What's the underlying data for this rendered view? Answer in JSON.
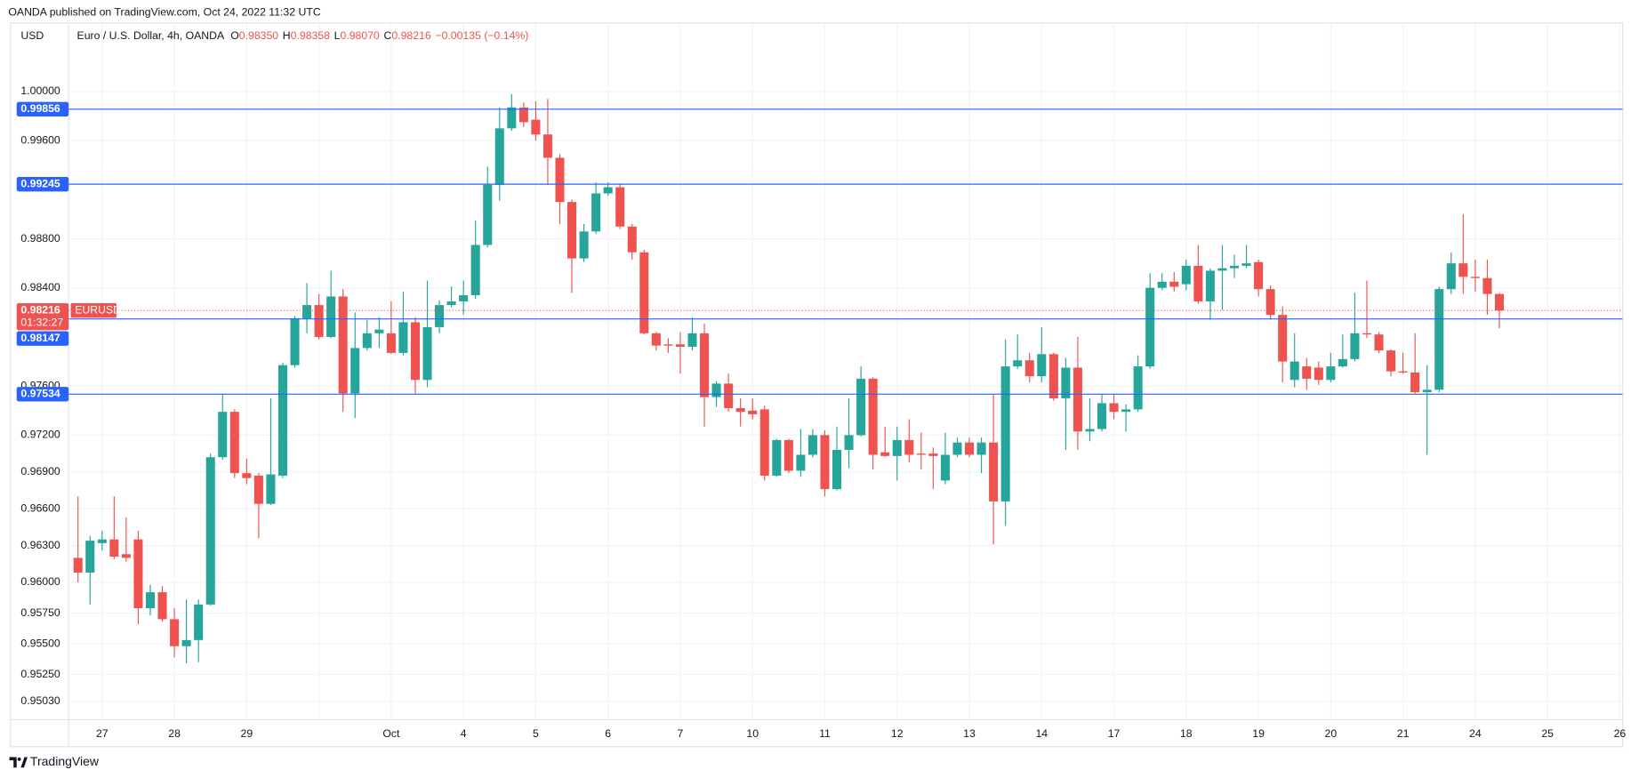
{
  "attribution": "OANDA published on TradingView.com, Oct 24, 2022 11:32 UTC",
  "brand": "TradingView",
  "chart_data": {
    "type": "candlestick",
    "title": "Euro / U.S. Dollar, 4h, OANDA",
    "header_values": [
      {
        "label": "O",
        "text": "0.98350"
      },
      {
        "label": "H",
        "text": "0.98358"
      },
      {
        "label": "L",
        "text": "0.98070"
      },
      {
        "label": "C",
        "text": "0.98216"
      }
    ],
    "change": "−0.00135 (−0.14%)",
    "y_axis_label": "USD",
    "day_labels": [
      "27",
      "28",
      "29",
      null,
      "Oct",
      "4",
      "5",
      "6",
      "7",
      "10",
      "11",
      "12",
      "13",
      "14",
      "17",
      "18",
      "19",
      "20",
      "21",
      "24",
      "25",
      "26"
    ],
    "open": [
      0.962,
      0.9608,
      0.9632,
      0.9635,
      0.9623,
      0.9635,
      0.9579,
      0.9592,
      0.957,
      0.9548,
      0.9553,
      0.9582,
      0.9702,
      0.9739,
      0.9689,
      0.9687,
      0.9664,
      0.9687,
      0.9777,
      0.9815,
      0.9826,
      0.98,
      0.9833,
      0.9754,
      0.9791,
      0.9803,
      0.9803,
      0.9787,
      0.9812,
      0.9765,
      0.9808,
      0.9826,
      0.9829,
      0.9834,
      0.9875,
      0.9924,
      0.997,
      0.9987,
      0.9977,
      0.9965,
      0.9946,
      0.991,
      0.9864,
      0.9886,
      0.9917,
      0.9922,
      0.989,
      0.9869,
      0.9803,
      0.9794,
      0.9794,
      0.9792,
      0.9803,
      0.9751,
      0.9762,
      0.9742,
      0.974,
      0.9741,
      0.9687,
      0.9716,
      0.9691,
      0.9704,
      0.972,
      0.9676,
      0.9708,
      0.972,
      0.9766,
      0.9706,
      0.9703,
      0.9716,
      0.9705,
      0.9705,
      0.9683,
      0.9704,
      0.9714,
      0.9704,
      0.9714,
      0.9666,
      0.9776,
      0.9781,
      0.9768,
      0.9786,
      0.975,
      0.9775,
      0.9723,
      0.9725,
      0.9746,
      0.9739,
      0.9741,
      0.9776,
      0.984,
      0.9845,
      0.9843,
      0.9858,
      0.9829,
      0.9854,
      0.9856,
      0.9858,
      0.9861,
      0.9839,
      0.9818,
      0.9765,
      0.9776,
      0.9775,
      0.9765,
      0.9776,
      0.9782,
      0.9803,
      0.9802,
      0.9789,
      0.9772,
      0.9771,
      0.9755,
      0.9757,
      0.9839,
      0.986,
      0.9849,
      0.9848,
      0.9835
    ],
    "high": [
      0.967,
      0.9638,
      0.9642,
      0.967,
      0.9653,
      0.9642,
      0.9598,
      0.9597,
      0.9579,
      0.9586,
      0.9586,
      0.9705,
      0.9753,
      0.9741,
      0.9701,
      0.9689,
      0.975,
      0.9779,
      0.9817,
      0.9844,
      0.9835,
      0.9854,
      0.9839,
      0.982,
      0.9814,
      0.9816,
      0.9829,
      0.9837,
      0.9816,
      0.9846,
      0.983,
      0.9841,
      0.9846,
      0.9895,
      0.9939,
      0.9987,
      0.9998,
      0.9991,
      0.9992,
      0.9994,
      0.9949,
      0.9912,
      0.9892,
      0.9926,
      0.9926,
      0.9925,
      0.9892,
      0.9871,
      0.9804,
      0.9799,
      0.9804,
      0.9816,
      0.9811,
      0.9764,
      0.977,
      0.975,
      0.975,
      0.9744,
      0.9717,
      0.9717,
      0.9725,
      0.9725,
      0.9724,
      0.9727,
      0.975,
      0.9776,
      0.9767,
      0.9727,
      0.9727,
      0.9733,
      0.9722,
      0.971,
      0.9722,
      0.9718,
      0.9718,
      0.9718,
      0.9753,
      0.9798,
      0.9802,
      0.9787,
      0.9808,
      0.9787,
      0.9783,
      0.98,
      0.975,
      0.9753,
      0.9753,
      0.9745,
      0.9785,
      0.9852,
      0.9852,
      0.9853,
      0.9863,
      0.9875,
      0.9856,
      0.9875,
      0.9867,
      0.9875,
      0.9863,
      0.9842,
      0.9825,
      0.9803,
      0.9783,
      0.978,
      0.9787,
      0.9802,
      0.9836,
      0.9846,
      0.9804,
      0.979,
      0.9787,
      0.9803,
      0.9777,
      0.9841,
      0.9869,
      0.99,
      0.9863,
      0.9863,
      0.98358
    ],
    "low": [
      0.96,
      0.9582,
      0.9626,
      0.9619,
      0.9617,
      0.9566,
      0.9573,
      0.9568,
      0.9539,
      0.9534,
      0.9535,
      0.9581,
      0.97,
      0.9685,
      0.968,
      0.9636,
      0.9663,
      0.9685,
      0.9775,
      0.9803,
      0.9798,
      0.9799,
      0.9739,
      0.9734,
      0.9789,
      0.9791,
      0.9786,
      0.9785,
      0.9754,
      0.9759,
      0.9803,
      0.9824,
      0.9818,
      0.9831,
      0.9873,
      0.9911,
      0.9968,
      0.9971,
      0.996,
      0.9924,
      0.9892,
      0.9836,
      0.9861,
      0.9884,
      0.9915,
      0.9888,
      0.9863,
      0.9802,
      0.9789,
      0.9787,
      0.977,
      0.9789,
      0.9727,
      0.9743,
      0.9739,
      0.9727,
      0.9733,
      0.9683,
      0.9686,
      0.9689,
      0.9686,
      0.9702,
      0.967,
      0.9675,
      0.9693,
      0.9719,
      0.9692,
      0.9702,
      0.9683,
      0.9698,
      0.9692,
      0.9676,
      0.968,
      0.9702,
      0.9702,
      0.9689,
      0.9631,
      0.9646,
      0.9774,
      0.9763,
      0.9763,
      0.9748,
      0.9708,
      0.9708,
      0.9715,
      0.9723,
      0.9733,
      0.9723,
      0.9739,
      0.9774,
      0.9838,
      0.9837,
      0.9838,
      0.9827,
      0.9814,
      0.9822,
      0.9848,
      0.9856,
      0.9833,
      0.9814,
      0.9763,
      0.9759,
      0.9757,
      0.9761,
      0.9763,
      0.9775,
      0.978,
      0.9799,
      0.9787,
      0.9768,
      0.977,
      0.9754,
      0.9704,
      0.9755,
      0.9835,
      0.9835,
      0.9837,
      0.9818,
      0.9807
    ],
    "close": [
      0.9608,
      0.9634,
      0.9635,
      0.9621,
      0.962,
      0.9579,
      0.9592,
      0.957,
      0.9548,
      0.9553,
      0.9582,
      0.9702,
      0.9739,
      0.9689,
      0.9685,
      0.9664,
      0.9688,
      0.9777,
      0.9815,
      0.9826,
      0.98,
      0.9833,
      0.9754,
      0.9791,
      0.9803,
      0.9806,
      0.9787,
      0.9812,
      0.9765,
      0.9808,
      0.9826,
      0.9829,
      0.9834,
      0.9875,
      0.9924,
      0.997,
      0.9987,
      0.9975,
      0.9965,
      0.9946,
      0.991,
      0.9864,
      0.9886,
      0.9917,
      0.9922,
      0.989,
      0.9869,
      0.9803,
      0.9793,
      0.9793,
      0.9792,
      0.9803,
      0.9751,
      0.9762,
      0.9742,
      0.9739,
      0.9737,
      0.9687,
      0.9716,
      0.9691,
      0.9704,
      0.972,
      0.9676,
      0.9708,
      0.972,
      0.9766,
      0.9704,
      0.9703,
      0.9716,
      0.9704,
      0.9704,
      0.9703,
      0.9704,
      0.9714,
      0.9704,
      0.9714,
      0.9666,
      0.9776,
      0.9781,
      0.9768,
      0.9786,
      0.975,
      0.9775,
      0.9723,
      0.9725,
      0.9746,
      0.9739,
      0.9741,
      0.9776,
      0.984,
      0.9845,
      0.9841,
      0.9858,
      0.9829,
      0.9854,
      0.9856,
      0.9858,
      0.986,
      0.9839,
      0.9818,
      0.978,
      0.978,
      0.9766,
      0.9765,
      0.9776,
      0.9782,
      0.9803,
      0.9802,
      0.9789,
      0.9772,
      0.9771,
      0.9755,
      0.9757,
      0.9839,
      0.986,
      0.9849,
      0.9848,
      0.9835,
      0.98216
    ],
    "up_color": "#26a69a",
    "down_color": "#ef5350",
    "ylim": [
      0.94881,
      1.00559
    ],
    "yticks": [
      {
        "value": 1.0,
        "label": "1.00000"
      },
      {
        "value": 0.996,
        "label": "0.99600"
      },
      {
        "value": 0.988,
        "label": "0.98800"
      },
      {
        "value": 0.984,
        "label": "0.98400"
      },
      {
        "value": 0.976,
        "label": "0.97600"
      },
      {
        "value": 0.972,
        "label": "0.97200"
      },
      {
        "value": 0.969,
        "label": "0.96900"
      },
      {
        "value": 0.966,
        "label": "0.96600"
      },
      {
        "value": 0.963,
        "label": "0.96300"
      },
      {
        "value": 0.96,
        "label": "0.96000"
      },
      {
        "value": 0.9575,
        "label": "0.95750"
      },
      {
        "value": 0.955,
        "label": "0.95500"
      },
      {
        "value": 0.9525,
        "label": "0.95250"
      },
      {
        "value": 0.9503,
        "label": "0.95030"
      }
    ],
    "grid": true,
    "levels": [
      {
        "value": 0.99856,
        "color": "#2962ff"
      },
      {
        "value": 0.99245,
        "color": "#2962ff"
      },
      {
        "value": 0.98147,
        "color": "#2962ff"
      },
      {
        "value": 0.97534,
        "color": "#2962ff"
      }
    ],
    "last_price": {
      "value": 0.98216,
      "symbol": "EURUSD",
      "countdown": "01:32:27",
      "color": "#ef5350"
    }
  }
}
